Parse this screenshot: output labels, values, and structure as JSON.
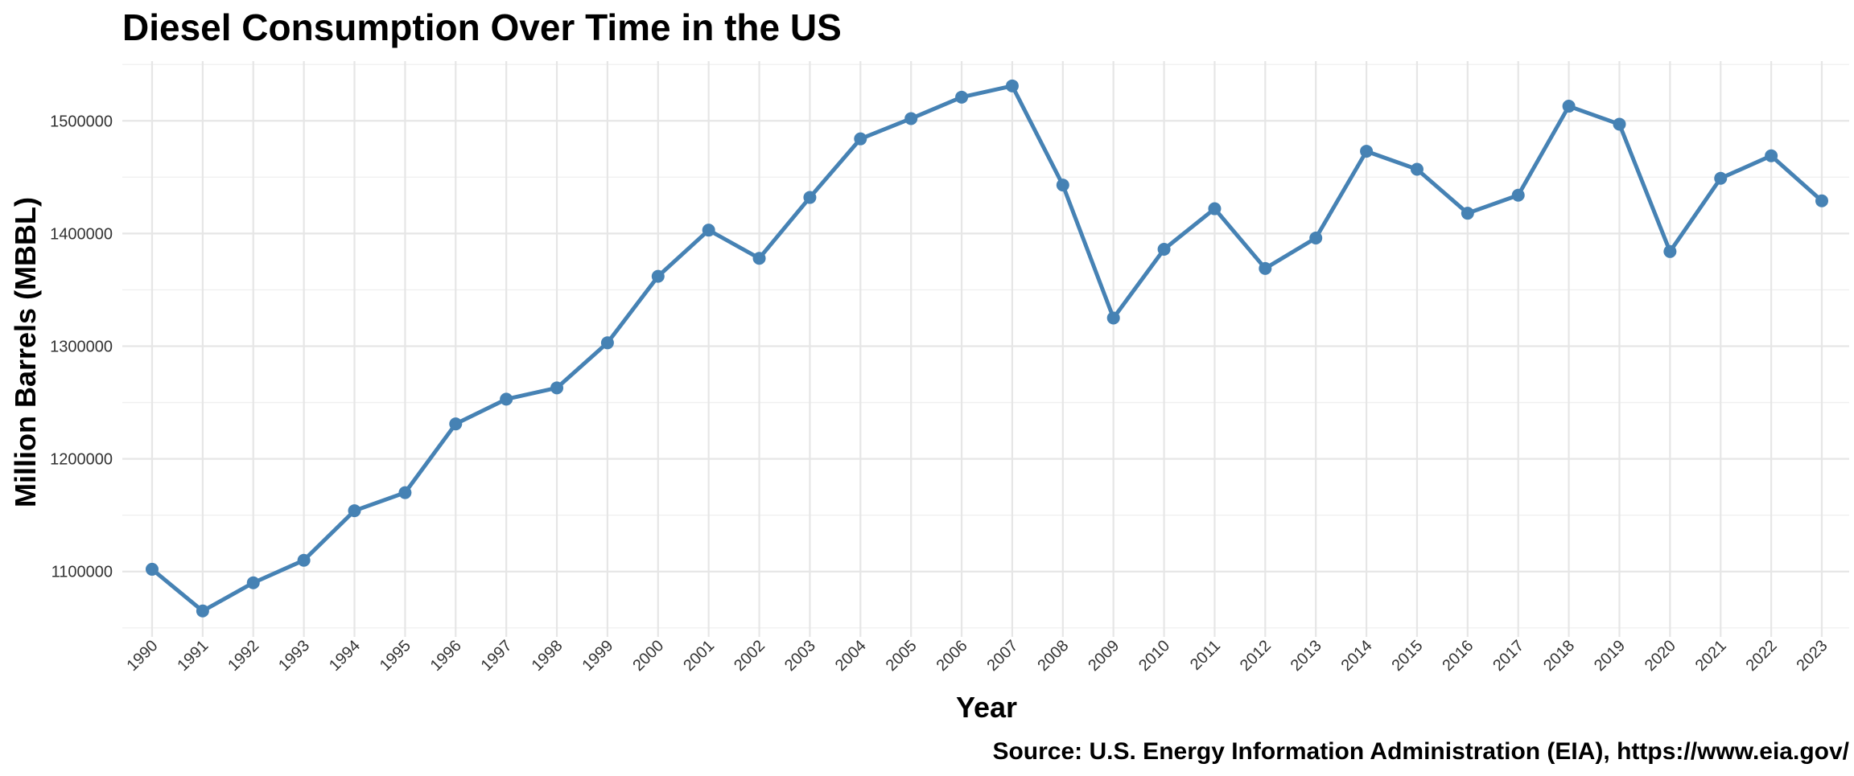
{
  "chart_data": {
    "type": "line",
    "title": "Diesel Consumption Over Time in the US",
    "xlabel": "Year",
    "ylabel": "Million Barrels (MBBL)",
    "caption": "Source: U.S. Energy Information Administration (EIA), https://www.eia.gov/",
    "x": [
      1990,
      1991,
      1992,
      1993,
      1994,
      1995,
      1996,
      1997,
      1998,
      1999,
      2000,
      2001,
      2002,
      2003,
      2004,
      2005,
      2006,
      2007,
      2008,
      2009,
      2010,
      2011,
      2012,
      2013,
      2014,
      2015,
      2016,
      2017,
      2018,
      2019,
      2020,
      2021,
      2022,
      2023
    ],
    "series": [
      {
        "values": [
          1102000,
          1065000,
          1090000,
          1110000,
          1154000,
          1170000,
          1231000,
          1253000,
          1263000,
          1303000,
          1362000,
          1403000,
          1378000,
          1432000,
          1484000,
          1502000,
          1521000,
          1531000,
          1443000,
          1325000,
          1386000,
          1422000,
          1369000,
          1396000,
          1473000,
          1457000,
          1418000,
          1434000,
          1513000,
          1497000,
          1384000,
          1449000,
          1469000,
          1429000
        ],
        "color": "#4682b4"
      }
    ],
    "y_ticks": [
      1100000,
      1200000,
      1300000,
      1400000,
      1500000
    ],
    "ylim": [
      1042000,
      1553000
    ],
    "grid": true,
    "legend": "none"
  }
}
